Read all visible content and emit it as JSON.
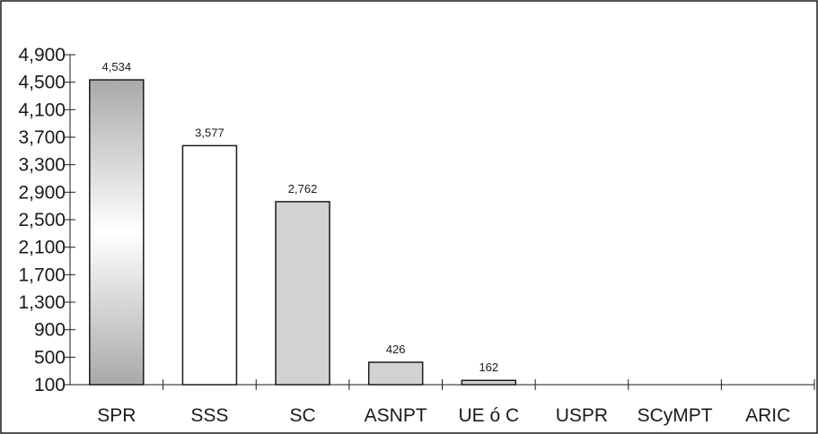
{
  "chart_data": {
    "type": "bar",
    "categories": [
      "SPR",
      "SSS",
      "SC",
      "ASNPT",
      "UE ó C",
      "USPR",
      "SCyMPT",
      "ARIC"
    ],
    "values": [
      4534,
      3577,
      2762,
      426,
      162,
      null,
      null,
      null
    ],
    "data_labels": [
      "4,534",
      "3,577",
      "2,762",
      "426",
      "162",
      "",
      "",
      ""
    ],
    "bar_fills": [
      "gradient",
      "#ffffff",
      "#d2d2d2",
      "#d2d2d2",
      "#d2d2d2",
      "none",
      "none",
      "none"
    ],
    "y_ticks": [
      100,
      500,
      900,
      1300,
      1700,
      2100,
      2500,
      2900,
      3300,
      3700,
      4100,
      4500,
      4900
    ],
    "y_tick_labels": [
      "100",
      "500",
      "900",
      "1,300",
      "1,700",
      "2,100",
      "2,500",
      "2,900",
      "3,300",
      "3,700",
      "4,100",
      "4,500",
      "4,900"
    ],
    "ylim": [
      100,
      4900
    ],
    "title": "",
    "xlabel": "",
    "ylabel": "",
    "grid": false,
    "legend": "none",
    "colors": {
      "frame": "#1a1a1a",
      "bar_outline": "#1a1a1a",
      "gradient_edge": "#a9a9a9",
      "gradient_center": "#ffffff"
    }
  }
}
